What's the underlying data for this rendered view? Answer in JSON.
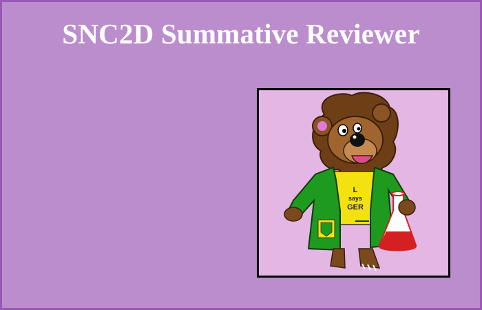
{
  "slide": {
    "title": "SNC2D Summative Reviewer",
    "background_color": "#bb8dcc",
    "border_color": "#9a58b4",
    "title_color": "#ffffff"
  },
  "mascot": {
    "shirt_line1": "L",
    "shirt_line2": "says",
    "shirt_line3": "GER",
    "coat_color": "#1e9a1e",
    "fur_color": "#7a4a1e",
    "flask_liquid_color": "#d42020",
    "background_color": "#e3b6e3",
    "icon": "lion-scientist-icon"
  }
}
